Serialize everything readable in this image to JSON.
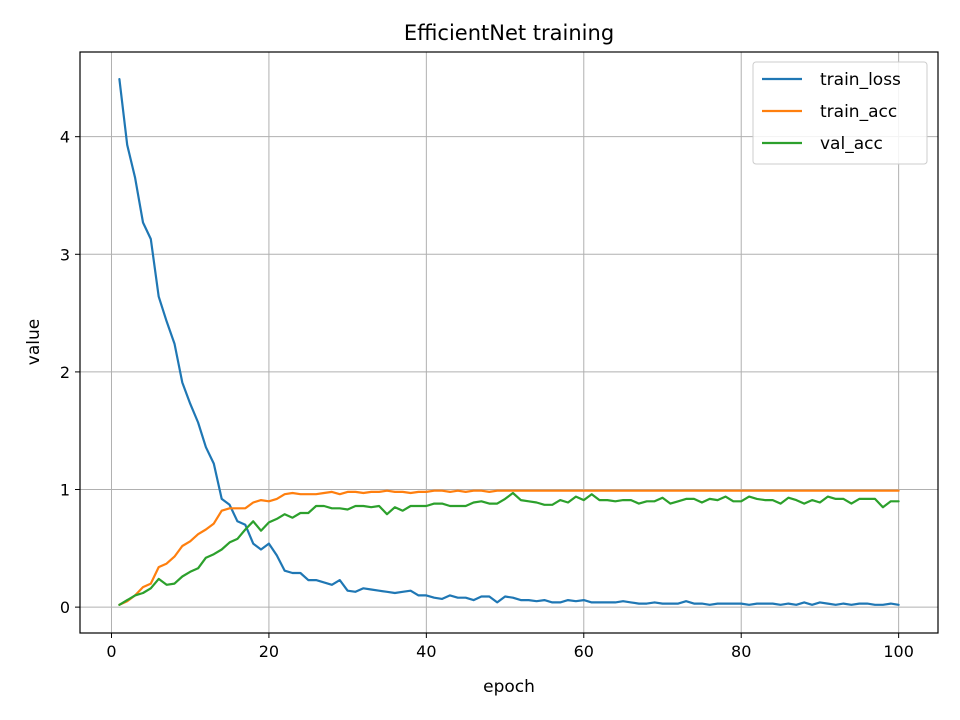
{
  "chart_data": {
    "type": "line",
    "title": "EfficientNet training",
    "xlabel": "epoch",
    "ylabel": "value",
    "xlim": [
      -4,
      105
    ],
    "ylim": [
      -0.22,
      4.72
    ],
    "xticks": [
      0,
      20,
      40,
      60,
      80,
      100
    ],
    "yticks": [
      0,
      1,
      2,
      3,
      4
    ],
    "grid": true,
    "legend_position": "upper right",
    "x": [
      1,
      2,
      3,
      4,
      5,
      6,
      7,
      8,
      9,
      10,
      11,
      12,
      13,
      14,
      15,
      16,
      17,
      18,
      19,
      20,
      21,
      22,
      23,
      24,
      25,
      26,
      27,
      28,
      29,
      30,
      31,
      32,
      33,
      34,
      35,
      36,
      37,
      38,
      39,
      40,
      41,
      42,
      43,
      44,
      45,
      46,
      47,
      48,
      49,
      50,
      51,
      52,
      53,
      54,
      55,
      56,
      57,
      58,
      59,
      60,
      61,
      62,
      63,
      64,
      65,
      66,
      67,
      68,
      69,
      70,
      71,
      72,
      73,
      74,
      75,
      76,
      77,
      78,
      79,
      80,
      81,
      82,
      83,
      84,
      85,
      86,
      87,
      88,
      89,
      90,
      91,
      92,
      93,
      94,
      95,
      96,
      97,
      98,
      99,
      100
    ],
    "series": [
      {
        "name": "train_loss",
        "color": "#1f77b4",
        "values": [
          4.49,
          3.93,
          3.65,
          3.27,
          3.13,
          2.64,
          2.43,
          2.24,
          1.91,
          1.73,
          1.57,
          1.36,
          1.22,
          0.92,
          0.87,
          0.73,
          0.7,
          0.54,
          0.49,
          0.54,
          0.44,
          0.31,
          0.29,
          0.29,
          0.23,
          0.23,
          0.21,
          0.19,
          0.23,
          0.14,
          0.13,
          0.16,
          0.15,
          0.14,
          0.13,
          0.12,
          0.13,
          0.14,
          0.1,
          0.1,
          0.08,
          0.07,
          0.1,
          0.08,
          0.08,
          0.06,
          0.09,
          0.09,
          0.04,
          0.09,
          0.08,
          0.06,
          0.06,
          0.05,
          0.06,
          0.04,
          0.04,
          0.06,
          0.05,
          0.06,
          0.04,
          0.04,
          0.04,
          0.04,
          0.05,
          0.04,
          0.03,
          0.03,
          0.04,
          0.03,
          0.03,
          0.03,
          0.05,
          0.03,
          0.03,
          0.02,
          0.03,
          0.03,
          0.03,
          0.03,
          0.02,
          0.03,
          0.03,
          0.03,
          0.02,
          0.03,
          0.02,
          0.04,
          0.02,
          0.04,
          0.03,
          0.02,
          0.03,
          0.02,
          0.03,
          0.03,
          0.02,
          0.02,
          0.03,
          0.02
        ]
      },
      {
        "name": "train_acc",
        "color": "#ff7f0e",
        "values": [
          0.02,
          0.05,
          0.1,
          0.17,
          0.2,
          0.34,
          0.37,
          0.43,
          0.52,
          0.56,
          0.62,
          0.66,
          0.71,
          0.82,
          0.84,
          0.84,
          0.84,
          0.89,
          0.91,
          0.9,
          0.92,
          0.96,
          0.97,
          0.96,
          0.96,
          0.96,
          0.97,
          0.98,
          0.96,
          0.98,
          0.98,
          0.97,
          0.98,
          0.98,
          0.99,
          0.98,
          0.98,
          0.97,
          0.98,
          0.98,
          0.99,
          0.99,
          0.98,
          0.99,
          0.98,
          0.99,
          0.99,
          0.98,
          0.99,
          0.99,
          0.99,
          0.99,
          0.99,
          0.99,
          0.99,
          0.99,
          0.99,
          0.99,
          0.99,
          0.99,
          0.99,
          0.99,
          0.99,
          0.99,
          0.99,
          0.99,
          0.99,
          0.99,
          0.99,
          0.99,
          0.99,
          0.99,
          0.99,
          0.99,
          0.99,
          0.99,
          0.99,
          0.99,
          0.99,
          0.99,
          0.99,
          0.99,
          0.99,
          0.99,
          0.99,
          0.99,
          0.99,
          0.99,
          0.99,
          0.99,
          0.99,
          0.99,
          0.99,
          0.99,
          0.99,
          0.99,
          0.99,
          0.99,
          0.99,
          0.99
        ]
      },
      {
        "name": "val_acc",
        "color": "#2ca02c",
        "values": [
          0.02,
          0.06,
          0.1,
          0.12,
          0.16,
          0.24,
          0.19,
          0.2,
          0.26,
          0.3,
          0.33,
          0.42,
          0.45,
          0.49,
          0.55,
          0.58,
          0.66,
          0.73,
          0.65,
          0.72,
          0.75,
          0.79,
          0.76,
          0.8,
          0.8,
          0.86,
          0.86,
          0.84,
          0.84,
          0.83,
          0.86,
          0.86,
          0.85,
          0.86,
          0.79,
          0.85,
          0.82,
          0.86,
          0.86,
          0.86,
          0.88,
          0.88,
          0.86,
          0.86,
          0.86,
          0.89,
          0.9,
          0.88,
          0.88,
          0.92,
          0.97,
          0.91,
          0.9,
          0.89,
          0.87,
          0.87,
          0.91,
          0.89,
          0.94,
          0.91,
          0.96,
          0.91,
          0.91,
          0.9,
          0.91,
          0.91,
          0.88,
          0.9,
          0.9,
          0.93,
          0.88,
          0.9,
          0.92,
          0.92,
          0.89,
          0.92,
          0.91,
          0.94,
          0.9,
          0.9,
          0.94,
          0.92,
          0.91,
          0.91,
          0.88,
          0.93,
          0.91,
          0.88,
          0.91,
          0.89,
          0.94,
          0.92,
          0.92,
          0.88,
          0.92,
          0.92,
          0.92,
          0.85,
          0.9,
          0.9
        ]
      }
    ]
  }
}
